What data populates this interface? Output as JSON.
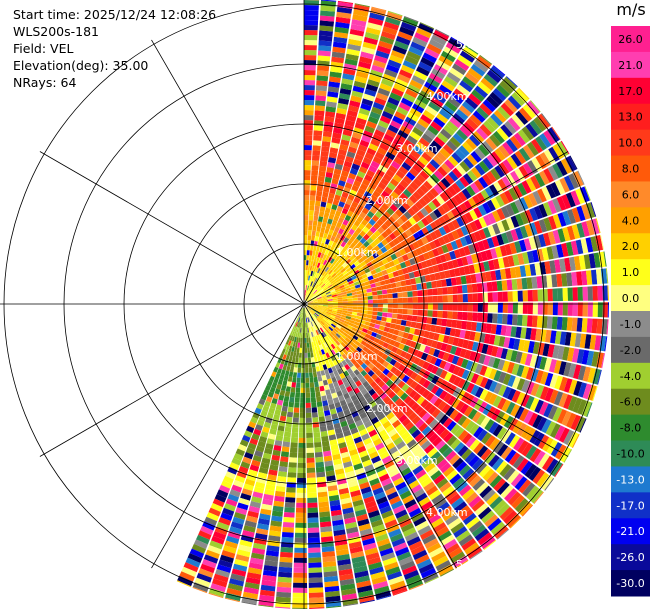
{
  "header": {
    "start_time": "Start time: 2025/12/24 12:08:26",
    "instrument": "WLS200s-181",
    "field": "Field: VEL",
    "elevation": "Elevation(deg): 35.00",
    "nrays": "NRays: 64"
  },
  "chart_data": {
    "type": "heatmap",
    "projection": "polar-ppi",
    "grid": true,
    "range_ring_labels": [
      "1.00km",
      "2.00km",
      "3.00km",
      "4.00km",
      "5.00km"
    ],
    "colorbar": {
      "title": "m/s",
      "tick_labels": [
        "26.0",
        "21.0",
        "17.0",
        "13.0",
        "10.0",
        "8.0",
        "6.0",
        "4.0",
        "2.0",
        "1.0",
        "0.0",
        "-1.0",
        "-2.0",
        "-4.0",
        "-6.0",
        "-8.0",
        "-10.0",
        "-13.0",
        "-17.0",
        "-21.0",
        "-26.0",
        "-30.0"
      ],
      "colors": [
        "#ff2090",
        "#ff3eb0",
        "#ff0033",
        "#ff1e1e",
        "#ff3a1a",
        "#ff5a0a",
        "#ff8a2a",
        "#ffa000",
        "#ffd000",
        "#ffff1a",
        "#ffff80",
        "#8c8c8c",
        "#6a6a6a",
        "#a0cf30",
        "#6e8c1e",
        "#2e8b2e",
        "#2e8b57",
        "#1e7ad0",
        "#1030c8",
        "#0000f0",
        "#0a0a9a",
        "#000060"
      ]
    }
  }
}
